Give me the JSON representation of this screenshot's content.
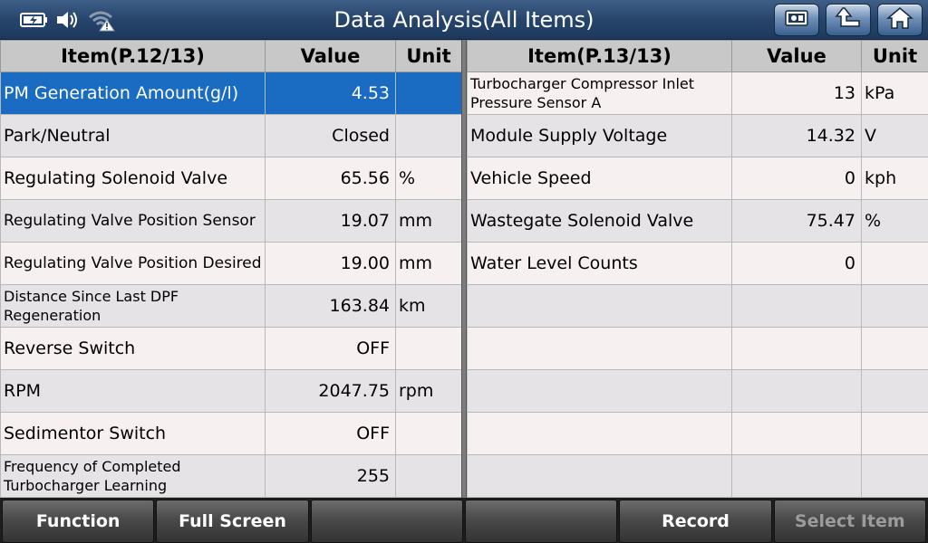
{
  "header": {
    "title": "Data Analysis(All Items)",
    "status_icons": [
      "battery-icon",
      "speaker-icon",
      "wifi-warning-icon"
    ],
    "nav_buttons": [
      "screenshot-icon",
      "back-arrow-icon",
      "home-icon"
    ]
  },
  "left_table": {
    "headers": {
      "item": "Item(P.12/13)",
      "value": "Value",
      "unit": "Unit"
    },
    "rows": [
      {
        "item": "PM Generation Amount(g/l)",
        "value": "4.53",
        "unit": ""
      },
      {
        "item": "Park/Neutral",
        "value": "Closed",
        "unit": ""
      },
      {
        "item": "Regulating Solenoid Valve",
        "value": "65.56",
        "unit": "%"
      },
      {
        "item": "Regulating Valve Position Sensor",
        "value": "19.07",
        "unit": "mm"
      },
      {
        "item": "Regulating Valve Position Desired",
        "value": "19.00",
        "unit": "mm"
      },
      {
        "item": "Distance Since Last DPF Regeneration",
        "value": "163.84",
        "unit": "km"
      },
      {
        "item": "Reverse Switch",
        "value": "OFF",
        "unit": ""
      },
      {
        "item": "RPM",
        "value": "2047.75",
        "unit": "rpm"
      },
      {
        "item": "Sedimentor Switch",
        "value": "OFF",
        "unit": ""
      },
      {
        "item": "Frequency of Completed Turbocharger Learning",
        "value": "255",
        "unit": ""
      }
    ]
  },
  "right_table": {
    "headers": {
      "item": "Item(P.13/13)",
      "value": "Value",
      "unit": "Unit"
    },
    "rows": [
      {
        "item": "Turbocharger Compressor Inlet Pressure Sensor A",
        "value": "13",
        "unit": "kPa"
      },
      {
        "item": "Module Supply Voltage",
        "value": "14.32",
        "unit": "V"
      },
      {
        "item": "Vehicle Speed",
        "value": "0",
        "unit": "kph"
      },
      {
        "item": "Wastegate Solenoid Valve",
        "value": "75.47",
        "unit": "%"
      },
      {
        "item": "Water Level Counts",
        "value": "0",
        "unit": ""
      },
      {
        "item": "",
        "value": "",
        "unit": ""
      },
      {
        "item": "",
        "value": "",
        "unit": ""
      },
      {
        "item": "",
        "value": "",
        "unit": ""
      },
      {
        "item": "",
        "value": "",
        "unit": ""
      },
      {
        "item": "",
        "value": "",
        "unit": ""
      }
    ]
  },
  "toolbar": {
    "function": "Function",
    "full_screen": "Full Screen",
    "empty_1": "",
    "empty_2": "",
    "record": "Record",
    "select_item": "Select Item"
  },
  "colors": {
    "title_bar": "#27456c",
    "selected_row": "#1a6bc2",
    "header_cell": "#c8c8c8",
    "toolbar": "#4a4a4a"
  }
}
